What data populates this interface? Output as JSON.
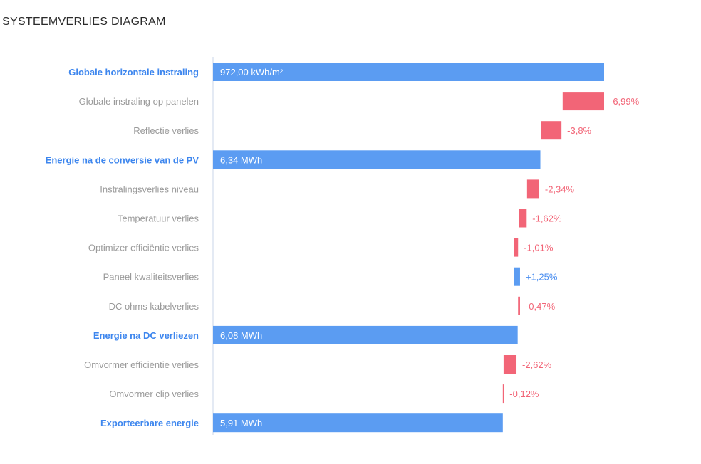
{
  "title": "SYSTEEMVERLIES DIAGRAM",
  "colors": {
    "total": "#5b9cf2",
    "loss": "#f26577",
    "gain": "#5b9cf2",
    "total_label": "#4a8ef0",
    "loss_label": "#f26577",
    "gain_label": "#4a8ef0",
    "category_total": "#3d86ee",
    "category_step": "#9a9a9a",
    "axis": "#c9d6e8",
    "bar_text": "#ffffff"
  },
  "chart_data": {
    "type": "bar",
    "subtype": "waterfall",
    "orientation": "horizontal",
    "title": "SYSTEEMVERLIES DIAGRAM",
    "xlabel": "",
    "ylabel": "",
    "grid": false,
    "legend": "none",
    "xlim": [
      0,
      100
    ],
    "rows": [
      {
        "label": "Globale horizontale instraling",
        "kind": "total",
        "display": "972,00 kWh/m²",
        "start": 0,
        "end": 100
      },
      {
        "label": "Globale instraling op panelen",
        "kind": "loss",
        "display": "-6,99%",
        "start": 89.4,
        "end": 100
      },
      {
        "label": "Reflectie verlies",
        "kind": "loss",
        "display": "-3,8%",
        "start": 83.9,
        "end": 89.1
      },
      {
        "label": "Energie na de conversie van de PV",
        "kind": "total",
        "display": "6,34 MWh",
        "start": 0,
        "end": 83.7
      },
      {
        "label": "Instralingsverlies niveau",
        "kind": "loss",
        "display": "-2,34%",
        "start": 80.3,
        "end": 83.4
      },
      {
        "label": "Temperatuur verlies",
        "kind": "loss",
        "display": "-1,62%",
        "start": 78.2,
        "end": 80.2
      },
      {
        "label": "Optimizer efficiëntie verlies",
        "kind": "loss",
        "display": "-1,01%",
        "start": 77.0,
        "end": 78.0
      },
      {
        "label": "Paneel kwaliteitsverlies",
        "kind": "gain",
        "display": "+1,25%",
        "start": 77.0,
        "end": 78.5
      },
      {
        "label": "DC ohms kabelverlies",
        "kind": "loss",
        "display": "-0,47%",
        "start": 78.0,
        "end": 78.5
      },
      {
        "label": "Energie na DC verliezen",
        "kind": "total",
        "display": "6,08 MWh",
        "start": 0,
        "end": 77.9
      },
      {
        "label": "Omvormer efficiëntie verlies",
        "kind": "loss",
        "display": "-2,62%",
        "start": 74.3,
        "end": 77.6
      },
      {
        "label": "Omvormer clip verlies",
        "kind": "loss",
        "display": "-0,12%",
        "start": 74.1,
        "end": 74.2
      },
      {
        "label": "Exporteerbare energie",
        "kind": "total",
        "display": "5,91 MWh",
        "start": 0,
        "end": 74.1
      }
    ]
  }
}
